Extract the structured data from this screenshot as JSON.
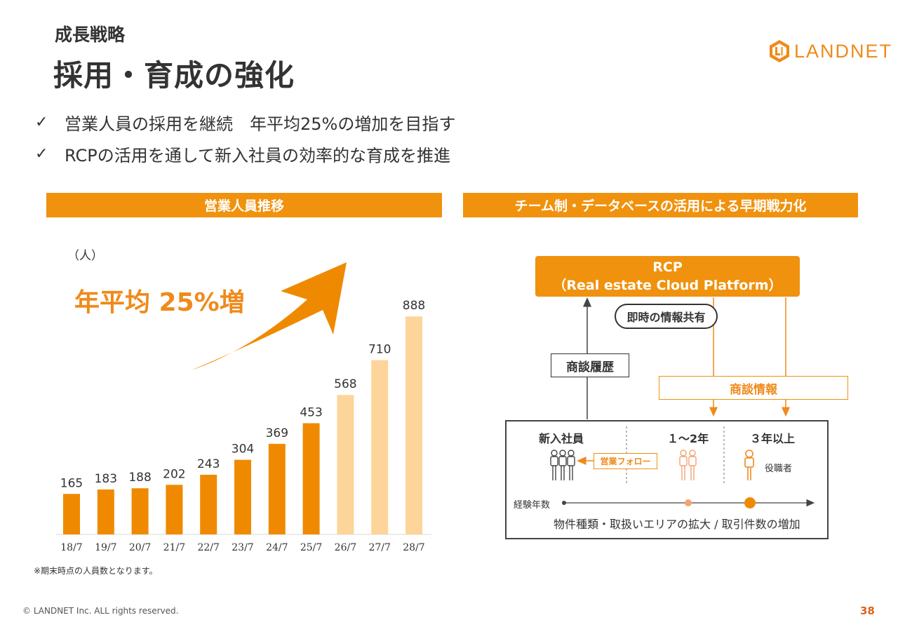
{
  "header": {
    "subtitle": "成長戦略",
    "title": "採用・育成の強化",
    "logo_text": "LANDNET"
  },
  "bullets": [
    {
      "check": "✓",
      "text": "営業人員の採用を継続　年平均25%の増加を目指す"
    },
    {
      "check": "✓",
      "text": "RCPの活用を通して新入社員の効率的な育成を推進"
    }
  ],
  "left_section": {
    "header": "営業人員推移",
    "unit": "（人）",
    "growth_label": "年平均 25%増",
    "note": "※期末時点の人員数となります。"
  },
  "chart_data": {
    "type": "bar",
    "title": "営業人員推移",
    "ylabel": "（人）",
    "categories": [
      "18/7",
      "19/7",
      "20/7",
      "21/7",
      "22/7",
      "23/7",
      "24/7",
      "25/7",
      "26/7",
      "27/7",
      "28/7"
    ],
    "values": [
      165,
      183,
      188,
      202,
      243,
      304,
      369,
      453,
      568,
      710,
      888
    ],
    "projected_from_index": 8,
    "ylim": [
      0,
      1000
    ],
    "colors": {
      "actual": "#ef8a00",
      "projected": "#fdd59a"
    },
    "annotation": "年平均 25%増",
    "grid": false,
    "legend": "none"
  },
  "right_section": {
    "header": "チーム制・データベースの活用による早期戦力化",
    "rcp_line1": "RCP",
    "rcp_line2": "（Real estate Cloud Platform）",
    "instant_share": "即時の情報共有",
    "history_label": "商談履歴",
    "info_label": "商談情報",
    "col_new": "新入社員",
    "col_mid": "１～2年",
    "col_senior": "３年以上",
    "follow_label": "営業フォロー",
    "manager_label": "役職者",
    "experience_label": "経験年数",
    "expansion_text": "物件種類・取扱いエリアの拡大 / 取引件数の増加"
  },
  "footer": {
    "copyright": "© LANDNET Inc. ALL rights reserved.",
    "page_number": "38"
  },
  "colors": {
    "accent": "#f0920e",
    "accent_light": "#fdd59a",
    "text": "#333333",
    "page_number": "#e0611a"
  }
}
